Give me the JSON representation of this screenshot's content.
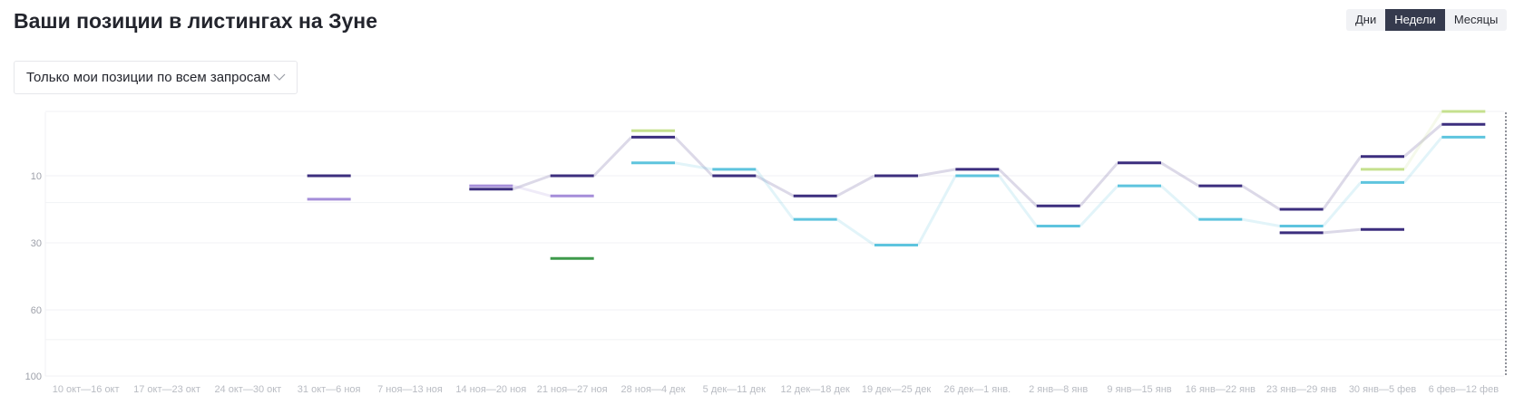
{
  "header": {
    "title": "Ваши позиции в листингах на Зуне"
  },
  "period_switch": {
    "options": [
      "Дни",
      "Недели",
      "Месяцы"
    ],
    "selected": "Недели"
  },
  "filter": {
    "selected": "Только мои позиции по всем запросам"
  },
  "chart_data": {
    "type": "line",
    "y_inverted": true,
    "ylim": [
      100,
      1
    ],
    "y_ticks": [
      10,
      30,
      60,
      100
    ],
    "categories": [
      "10 окт—16 окт",
      "17 окт—23 окт",
      "24 окт—30 окт",
      "31 окт—6 ноя",
      "7 ноя—13 ноя",
      "14 ноя—20 ноя",
      "21 ноя—27 ноя",
      "28 ноя—4 дек",
      "5 дек—11 дек",
      "12 дек—18 дек",
      "19 дек—25 дек",
      "26 дек—1 янв.",
      "2 янв—8 янв",
      "9 янв—15 янв",
      "16 янв—22 янв",
      "23 янв—29 янв",
      "30 янв—5 фев",
      "6 фев—12 фев"
    ],
    "series": [
      {
        "color": "#3c2e7e",
        "values": [
          null,
          null,
          null,
          10,
          null,
          14,
          10,
          4,
          10,
          16,
          10,
          9,
          19,
          8,
          13,
          20,
          7,
          2
        ]
      },
      {
        "color": "#5ec4de",
        "values": [
          null,
          null,
          null,
          null,
          null,
          null,
          null,
          8,
          9,
          23,
          31,
          10,
          25,
          13,
          23,
          25,
          12,
          4
        ]
      },
      {
        "color": "#c5e08e",
        "values": [
          null,
          null,
          null,
          null,
          null,
          null,
          null,
          3,
          null,
          null,
          null,
          null,
          null,
          null,
          null,
          null,
          9,
          0
        ]
      },
      {
        "color": "#a58ed9",
        "values": [
          null,
          null,
          null,
          17,
          null,
          13,
          16,
          null,
          null,
          null,
          null,
          null,
          null,
          null,
          null,
          null,
          null,
          null
        ]
      },
      {
        "color": "#3e9a4b",
        "values": [
          null,
          null,
          null,
          null,
          null,
          null,
          37,
          null,
          null,
          null,
          null,
          null,
          null,
          null,
          null,
          null,
          null,
          null
        ]
      },
      {
        "color": "#3c2e7e",
        "values": [
          null,
          null,
          null,
          null,
          null,
          null,
          null,
          null,
          null,
          null,
          null,
          null,
          null,
          null,
          null,
          27,
          26,
          null
        ]
      }
    ]
  }
}
